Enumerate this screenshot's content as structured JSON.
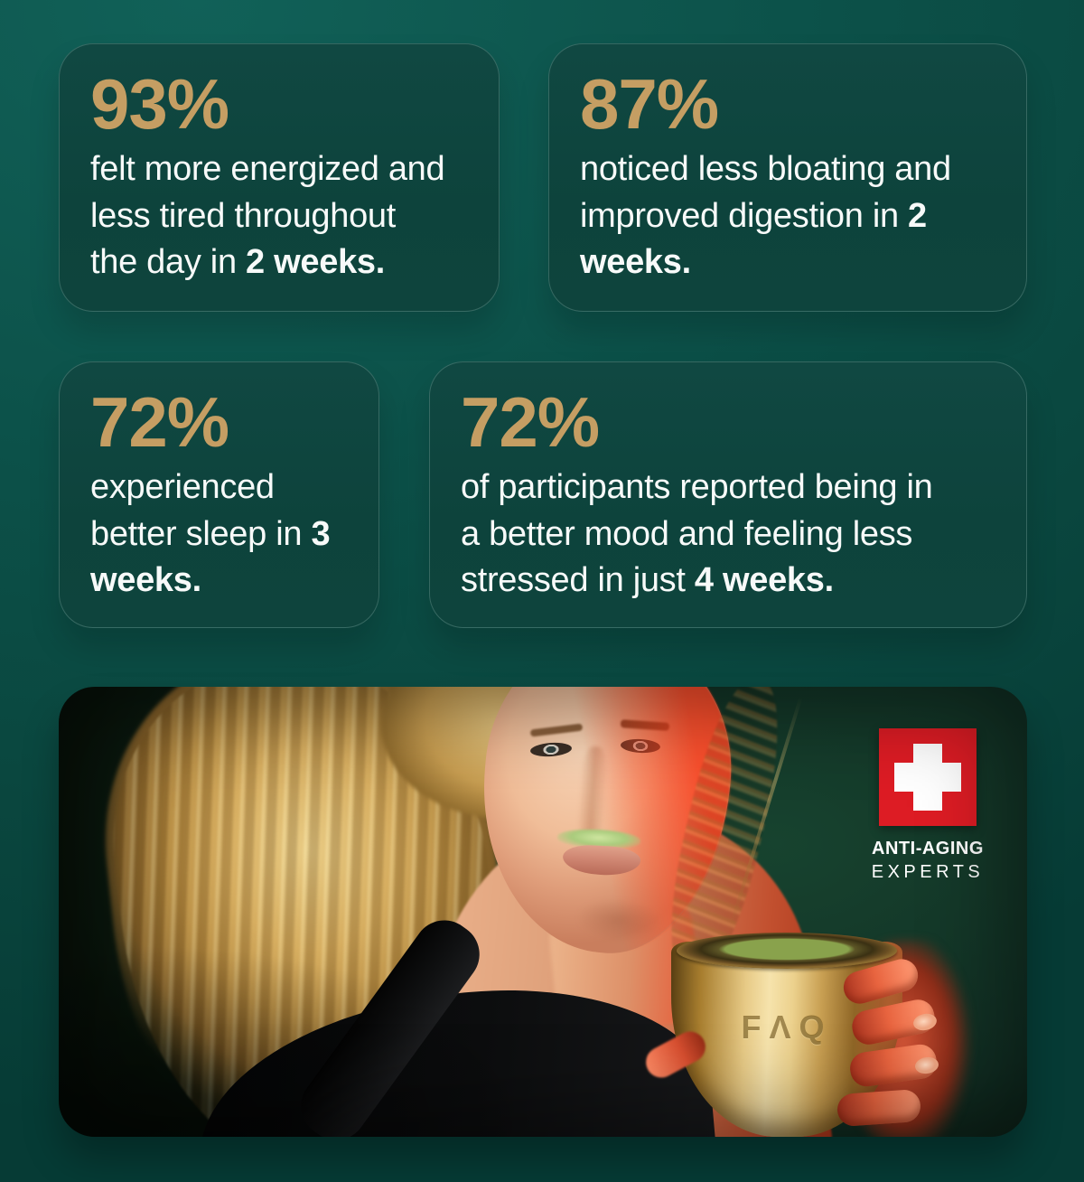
{
  "theme": {
    "page_background": "#0b4f48",
    "card_background": "#0e443d",
    "accent_gold": "#c59e63",
    "text_white": "#f7faf9",
    "logo_red": "#dd1c24"
  },
  "stats": [
    {
      "value": "93%",
      "text": "felt more energized and\nless tired throughout\nthe day in ",
      "bold": "2 weeks."
    },
    {
      "value": "87%",
      "text": "noticed less bloating and\nimproved digestion in ",
      "bold": "2\nweeks."
    },
    {
      "value": "72%",
      "text": "experienced\nbetter sleep in ",
      "bold": "3\nweeks."
    },
    {
      "value": "72%",
      "text": "of participants reported being in\na better mood and feeling less\nstressed in just ",
      "bold": "4 weeks."
    }
  ],
  "photo": {
    "logo": {
      "line1": "ANTI-AGING",
      "line2": "EXPERTS"
    },
    "cup_label": "FΛQ"
  }
}
